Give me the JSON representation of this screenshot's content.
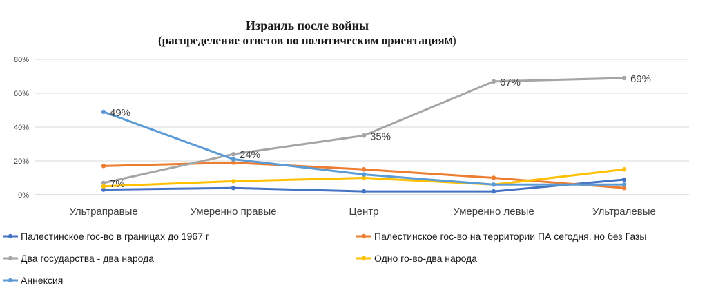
{
  "chart_data": {
    "type": "line",
    "title_line1": "Израиль после войны",
    "title_line2_bold": "(распределение ответов по  политическим ориентация",
    "title_line2_tail": "м)",
    "categories": [
      "Ультраправые",
      "Умеренно правые",
      "Центр",
      "Умеренно левые",
      "Ультралевые"
    ],
    "y_ticks": [
      "0%",
      "20%",
      "40%",
      "60%",
      "80%"
    ],
    "ylim": [
      0,
      80
    ],
    "grid": true,
    "legend_position": "bottom",
    "series": [
      {
        "name": "Палестинское гос-во в границах до 1967 г",
        "color": "#4472C4",
        "values": [
          3,
          4,
          2,
          2,
          9
        ]
      },
      {
        "name": "Палестинское гос-во  на территории ПА сегодня, но без Газы",
        "color": "#ED7D31",
        "values": [
          17,
          19,
          15,
          10,
          4
        ]
      },
      {
        "name": "Два государства - два народа",
        "color": "#A5A5A5",
        "values": [
          7,
          24,
          35,
          67,
          69
        ],
        "labels": [
          "7%",
          "24%",
          "35%",
          "67%",
          "69%"
        ]
      },
      {
        "name": "Одно го-во-два народа",
        "color": "#FFC000",
        "values": [
          5,
          8,
          10,
          6,
          15
        ]
      },
      {
        "name": "Аннексия",
        "color": "#5B9BD5",
        "values": [
          49,
          21,
          12,
          6,
          6
        ],
        "labels": [
          "49%",
          null,
          null,
          null,
          null
        ]
      }
    ]
  }
}
